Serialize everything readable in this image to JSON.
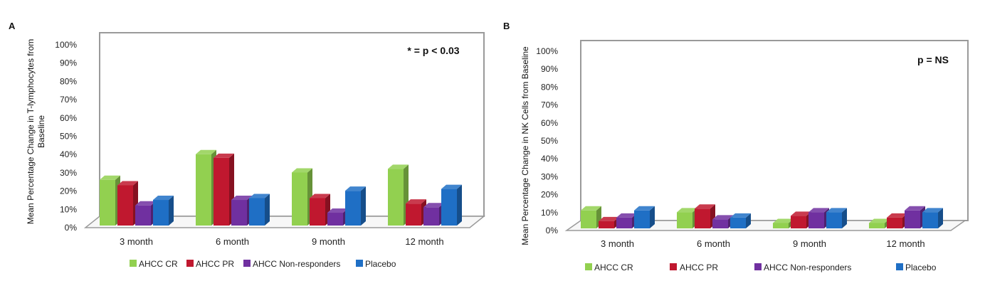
{
  "colors": {
    "AHCC CR": "#92d050",
    "AHCC PR": "#c0182f",
    "AHCC Non-responders": "#7030a0",
    "Placebo": "#1f6fc5"
  },
  "chart_data": [
    {
      "panel": "A",
      "type": "bar",
      "ylabel_line1": "Mean Percentage Change in T-lymphocytes from",
      "ylabel_line2": "Baseline",
      "annotation": "* = p < 0.03",
      "ylim": [
        0,
        100
      ],
      "yticks": [
        "0%",
        "10%",
        "20%",
        "30%",
        "40%",
        "50%",
        "60%",
        "70%",
        "80%",
        "90%",
        "100%"
      ],
      "categories": [
        "3 month",
        "6 month",
        "9 month",
        "12 month"
      ],
      "series": [
        {
          "name": "AHCC CR",
          "values": [
            25,
            39,
            29,
            31
          ]
        },
        {
          "name": "AHCC PR",
          "values": [
            22,
            37,
            15,
            12
          ]
        },
        {
          "name": "AHCC Non-responders",
          "values": [
            11,
            14,
            7,
            10
          ]
        },
        {
          "name": "Placebo",
          "values": [
            14,
            15,
            19,
            20
          ]
        }
      ],
      "grid": false,
      "legend": "bottom"
    },
    {
      "panel": "B",
      "type": "bar",
      "ylabel_line1": "Mean Percentage Change in NK Cells from Baseline",
      "ylabel_line2": "",
      "annotation": "p = NS",
      "ylim": [
        0,
        100
      ],
      "yticks": [
        "0%",
        "10%",
        "20%",
        "30%",
        "40%",
        "50%",
        "60%",
        "70%",
        "80%",
        "90%",
        "100%"
      ],
      "categories": [
        "3 month",
        "6 month",
        "9 month",
        "12 month"
      ],
      "series": [
        {
          "name": "AHCC CR",
          "values": [
            10,
            9,
            3,
            3
          ]
        },
        {
          "name": "AHCC PR",
          "values": [
            4,
            11,
            7,
            6
          ]
        },
        {
          "name": "AHCC Non-responders",
          "values": [
            6,
            5,
            9,
            10
          ]
        },
        {
          "name": "Placebo",
          "values": [
            10,
            6,
            9,
            9
          ]
        }
      ],
      "grid": false,
      "legend": "bottom"
    }
  ]
}
